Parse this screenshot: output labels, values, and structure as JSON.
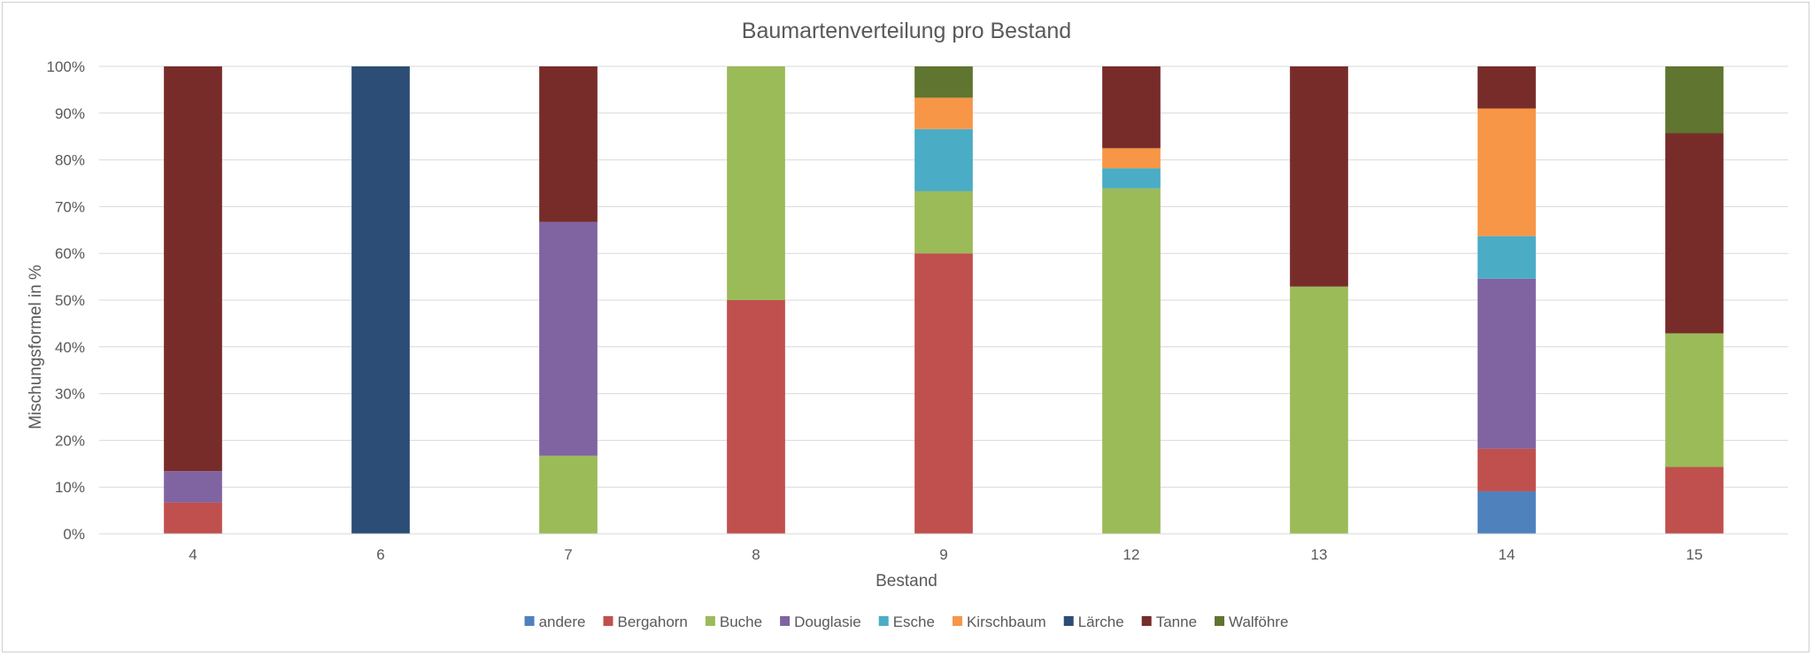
{
  "chart_data": {
    "type": "bar",
    "stacked": true,
    "title": "Baumartenverteilung pro Bestand",
    "xlabel": "Bestand",
    "ylabel": "Mischungsformel in %",
    "ylim": [
      0,
      100
    ],
    "ytick_step": 10,
    "ytick_suffix": "%",
    "grid": true,
    "legend_position": "bottom",
    "categories": [
      "4",
      "6",
      "7",
      "8",
      "9",
      "12",
      "13",
      "14",
      "15"
    ],
    "series": [
      {
        "name": "andere",
        "color": "#4f81bd",
        "values": [
          0,
          0,
          0,
          0,
          0,
          0,
          0,
          9.1,
          0
        ]
      },
      {
        "name": "Bergahorn",
        "color": "#c0504d",
        "values": [
          6.7,
          0,
          0,
          50,
          60,
          0,
          0,
          9.1,
          14.3
        ]
      },
      {
        "name": "Buche",
        "color": "#9bbb59",
        "values": [
          0,
          0,
          16.7,
          50,
          13.3,
          73.9,
          52.9,
          0,
          28.6
        ]
      },
      {
        "name": "Douglasie",
        "color": "#8064a2",
        "values": [
          6.7,
          0,
          50,
          0,
          0,
          0,
          0,
          36.4,
          0
        ]
      },
      {
        "name": "Esche",
        "color": "#4bacc6",
        "values": [
          0,
          0,
          0,
          0,
          13.3,
          4.3,
          0,
          9.1,
          0
        ]
      },
      {
        "name": "Kirschbaum",
        "color": "#f79646",
        "values": [
          0,
          0,
          0,
          0,
          6.7,
          4.3,
          0,
          27.3,
          0
        ]
      },
      {
        "name": "Lärche",
        "color": "#2c4d75",
        "values": [
          0,
          100,
          0,
          0,
          0,
          0,
          0,
          0,
          0
        ]
      },
      {
        "name": "Tanne",
        "color": "#772c2a",
        "values": [
          86.6,
          0,
          33.3,
          0,
          0,
          17.5,
          47.1,
          9.0,
          42.8
        ]
      },
      {
        "name": "Walföhre",
        "color": "#5f7530",
        "values": [
          0,
          0,
          0,
          0,
          6.7,
          0,
          0,
          0,
          14.3
        ]
      }
    ]
  }
}
